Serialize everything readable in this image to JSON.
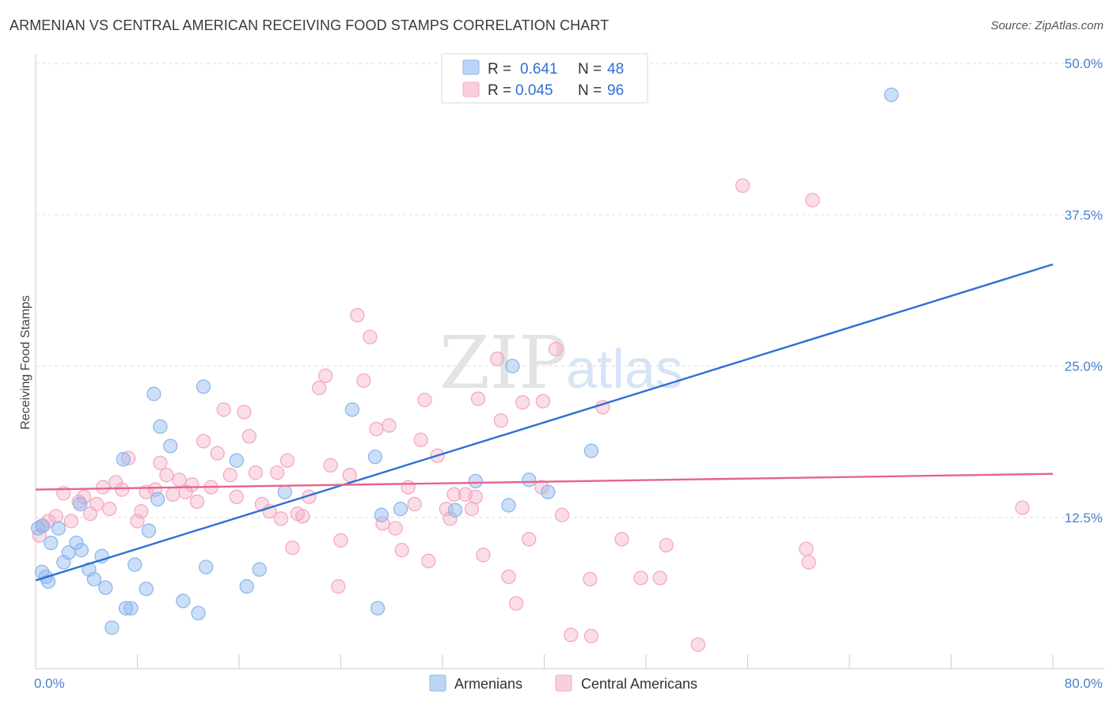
{
  "header": {
    "title": "ARMENIAN VS CENTRAL AMERICAN RECEIVING FOOD STAMPS CORRELATION CHART",
    "source": "Source: ZipAtlas.com"
  },
  "watermark": {
    "zip": "ZIP",
    "atlas": "atlas"
  },
  "legend_top": [
    {
      "r_label": "R =",
      "r_value": "0.641",
      "n_label": "N =",
      "n_value": "48"
    },
    {
      "r_label": "R =",
      "r_value": "0.045",
      "n_label": "N =",
      "n_value": "96"
    }
  ],
  "chart_data": {
    "type": "scatter",
    "title": "ARMENIAN VS CENTRAL AMERICAN RECEIVING FOOD STAMPS CORRELATION CHART",
    "xlabel": "",
    "ylabel": "Receiving Food Stamps",
    "xlim": [
      0,
      80
    ],
    "ylim": [
      0,
      50
    ],
    "x_tick_labels": [
      "0.0%",
      "80.0%"
    ],
    "y_ticks": [
      12.5,
      25.0,
      37.5,
      50.0
    ],
    "y_tick_labels": [
      "12.5%",
      "25.0%",
      "37.5%",
      "50.0%"
    ],
    "grid": "horizontal-dashed",
    "legend_position": "top-center",
    "series": [
      {
        "name": "Armenians",
        "color": "#8db8ee",
        "line_color": "#2f6fd6",
        "r": 0.641,
        "n": 48,
        "trend": {
          "x": [
            0,
            80
          ],
          "y": [
            7.3,
            33.4
          ]
        },
        "points": [
          [
            0.2,
            11.6
          ],
          [
            0.5,
            8.0
          ],
          [
            0.8,
            7.6
          ],
          [
            1.2,
            10.4
          ],
          [
            1.8,
            11.6
          ],
          [
            2.2,
            8.8
          ],
          [
            2.6,
            9.6
          ],
          [
            3.2,
            10.4
          ],
          [
            3.6,
            9.8
          ],
          [
            4.2,
            8.2
          ],
          [
            4.6,
            7.4
          ],
          [
            5.2,
            9.3
          ],
          [
            5.5,
            6.7
          ],
          [
            6.0,
            3.4
          ],
          [
            6.9,
            17.3
          ],
          [
            7.1,
            5.0
          ],
          [
            7.5,
            5.0
          ],
          [
            7.8,
            8.6
          ],
          [
            8.7,
            6.6
          ],
          [
            8.9,
            11.4
          ],
          [
            9.3,
            22.7
          ],
          [
            9.6,
            14.0
          ],
          [
            9.8,
            20.0
          ],
          [
            10.6,
            18.4
          ],
          [
            11.6,
            5.6
          ],
          [
            13.2,
            23.3
          ],
          [
            13.4,
            8.4
          ],
          [
            12.8,
            4.6
          ],
          [
            15.8,
            17.2
          ],
          [
            16.6,
            6.8
          ],
          [
            17.6,
            8.2
          ],
          [
            19.6,
            14.6
          ],
          [
            24.9,
            21.4
          ],
          [
            26.7,
            17.5
          ],
          [
            26.9,
            5.0
          ],
          [
            27.2,
            12.7
          ],
          [
            28.7,
            13.2
          ],
          [
            33.0,
            13.1
          ],
          [
            34.6,
            15.5
          ],
          [
            37.2,
            13.5
          ],
          [
            37.5,
            25.0
          ],
          [
            38.8,
            15.6
          ],
          [
            40.3,
            14.6
          ],
          [
            43.7,
            18.0
          ],
          [
            67.3,
            47.4
          ],
          [
            3.5,
            13.6
          ],
          [
            1.0,
            7.2
          ],
          [
            0.5,
            11.8
          ]
        ]
      },
      {
        "name": "Central Americans",
        "color": "#f4a9c2",
        "line_color": "#e8628f",
        "r": 0.045,
        "n": 96,
        "trend": {
          "x": [
            0,
            80
          ],
          "y": [
            14.8,
            16.1
          ]
        },
        "points": [
          [
            0.3,
            11.0
          ],
          [
            0.6,
            11.8
          ],
          [
            1.0,
            12.2
          ],
          [
            1.6,
            12.6
          ],
          [
            2.2,
            14.5
          ],
          [
            2.8,
            12.2
          ],
          [
            3.4,
            13.8
          ],
          [
            3.8,
            14.2
          ],
          [
            4.3,
            12.8
          ],
          [
            4.8,
            13.6
          ],
          [
            5.3,
            15.0
          ],
          [
            5.8,
            13.2
          ],
          [
            6.3,
            15.4
          ],
          [
            6.8,
            14.8
          ],
          [
            7.3,
            17.4
          ],
          [
            8.0,
            12.2
          ],
          [
            8.3,
            13.0
          ],
          [
            8.7,
            14.6
          ],
          [
            9.4,
            14.8
          ],
          [
            9.8,
            17.0
          ],
          [
            10.3,
            16.0
          ],
          [
            10.8,
            14.4
          ],
          [
            11.3,
            15.6
          ],
          [
            11.8,
            14.6
          ],
          [
            12.3,
            15.2
          ],
          [
            12.7,
            13.8
          ],
          [
            13.2,
            18.8
          ],
          [
            13.8,
            15.0
          ],
          [
            14.3,
            17.8
          ],
          [
            14.8,
            21.4
          ],
          [
            15.3,
            16.0
          ],
          [
            15.8,
            14.2
          ],
          [
            16.4,
            21.2
          ],
          [
            16.8,
            19.2
          ],
          [
            17.3,
            16.2
          ],
          [
            17.8,
            13.6
          ],
          [
            18.4,
            13.0
          ],
          [
            19.0,
            16.2
          ],
          [
            19.3,
            12.4
          ],
          [
            19.8,
            17.2
          ],
          [
            20.2,
            10.0
          ],
          [
            20.6,
            12.8
          ],
          [
            21.0,
            12.6
          ],
          [
            21.5,
            14.2
          ],
          [
            22.3,
            23.2
          ],
          [
            22.8,
            24.2
          ],
          [
            23.2,
            16.8
          ],
          [
            23.8,
            6.8
          ],
          [
            24.0,
            10.6
          ],
          [
            24.7,
            16.0
          ],
          [
            25.3,
            29.2
          ],
          [
            25.8,
            23.8
          ],
          [
            26.3,
            27.4
          ],
          [
            26.8,
            19.8
          ],
          [
            27.3,
            12.0
          ],
          [
            27.8,
            20.1
          ],
          [
            28.3,
            11.6
          ],
          [
            28.8,
            9.8
          ],
          [
            29.3,
            15.0
          ],
          [
            29.8,
            13.6
          ],
          [
            30.3,
            18.9
          ],
          [
            30.6,
            22.2
          ],
          [
            30.9,
            8.9
          ],
          [
            31.6,
            17.6
          ],
          [
            32.3,
            13.2
          ],
          [
            32.6,
            12.4
          ],
          [
            32.9,
            14.4
          ],
          [
            33.8,
            14.4
          ],
          [
            34.3,
            13.2
          ],
          [
            34.6,
            14.2
          ],
          [
            34.8,
            22.3
          ],
          [
            35.2,
            9.4
          ],
          [
            36.3,
            25.6
          ],
          [
            36.6,
            20.5
          ],
          [
            37.2,
            7.6
          ],
          [
            37.8,
            5.4
          ],
          [
            38.3,
            22.0
          ],
          [
            38.8,
            10.7
          ],
          [
            39.8,
            15.0
          ],
          [
            39.9,
            22.1
          ],
          [
            40.9,
            26.4
          ],
          [
            41.4,
            12.7
          ],
          [
            42.1,
            2.8
          ],
          [
            43.6,
            7.4
          ],
          [
            43.7,
            2.7
          ],
          [
            44.6,
            21.6
          ],
          [
            46.1,
            10.7
          ],
          [
            47.6,
            7.5
          ],
          [
            49.1,
            7.5
          ],
          [
            49.6,
            10.2
          ],
          [
            52.1,
            2.0
          ],
          [
            55.6,
            39.9
          ],
          [
            60.6,
            9.9
          ],
          [
            60.8,
            8.8
          ],
          [
            61.1,
            38.7
          ],
          [
            77.6,
            13.3
          ]
        ]
      }
    ]
  }
}
